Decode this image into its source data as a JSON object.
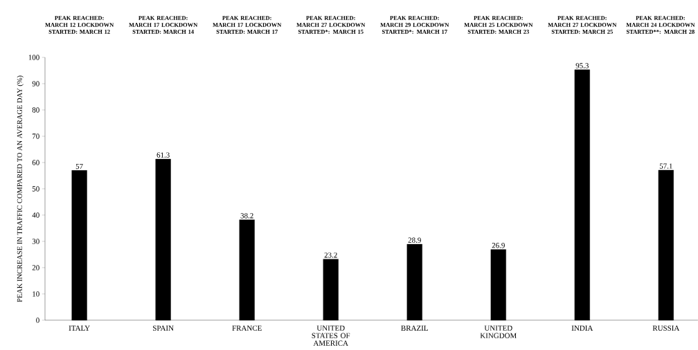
{
  "chart_data": {
    "type": "bar",
    "ylabel": "PEAK INCREASE IN TRAFFIC COMPARED TO AN AVERAGE DAY (%)",
    "categories": [
      "ITALY",
      "SPAIN",
      "FRANCE",
      "UNITED STATES OF AMERICA",
      "BRAZIL",
      "UNITED KINGDOM",
      "INDIA",
      "RUSSIA"
    ],
    "values": [
      57,
      61.3,
      38.2,
      23.2,
      28.9,
      26.9,
      95.3,
      57.1
    ],
    "color": "#000000",
    "ylim": [
      0,
      100
    ],
    "yticks": [
      0,
      10,
      20,
      30,
      40,
      50,
      60,
      70,
      80,
      90,
      100
    ],
    "data_labels": true,
    "grid": false,
    "annotations": [
      "PEAK REACHED: MARCH 12 LOCKDOWN STARTED: MARCH 12",
      "PEAK REACHED: MARCH 17 LOCKDOWN STARTED: MARCH 14",
      "PEAK REACHED: MARCH 17 LOCKDOWN STARTED: MARCH 17",
      "PEAK REACHED: MARCH 27 LOCKDOWN STARTED*: MARCH 15",
      "PEAK REACHED: MARCH 29 LOCKDOWN STARTED*: MARCH 17",
      "PEAK REACHED: MARCH 25 LOCKDOWN STARTED: MARCH 23",
      "PEAK REACHED: MARCH 27 LOCKDOWN STARTED: MARCH 25",
      "PEAK REACHED: MARCH 24 LOCKDOWN STARTED**: MARCH 28"
    ]
  }
}
